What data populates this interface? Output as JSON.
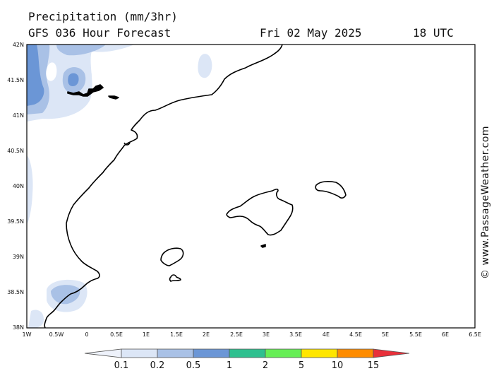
{
  "header": {
    "title": "Precipitation (mm/3hr)",
    "model": "GFS 036 Hour Forecast",
    "date": "Fri 02 May 2025",
    "time": "18 UTC"
  },
  "credit": "© www.PassageWeather.com",
  "axes": {
    "lat_labels": [
      "42N",
      "41.5N",
      "41N",
      "40.5N",
      "40N",
      "39.5N",
      "39N",
      "38.5N",
      "38N"
    ],
    "lon_labels": [
      "1W",
      "0.5W",
      "0",
      "0.5E",
      "1E",
      "1.5E",
      "2E",
      "2.5E",
      "3E",
      "3.5E",
      "4E",
      "4.5E",
      "5E",
      "5.5E",
      "6E",
      "6.5E"
    ]
  },
  "legend": {
    "labels": [
      "0.1",
      "0.2",
      "0.5",
      "1",
      "2",
      "5",
      "10",
      "15"
    ],
    "colors": [
      "#eef2fb",
      "#dce6f6",
      "#a9c1e6",
      "#6b96d6",
      "#2ec08f",
      "#66ee55",
      "#ffe600",
      "#ff8c00",
      "#e8303a"
    ]
  }
}
